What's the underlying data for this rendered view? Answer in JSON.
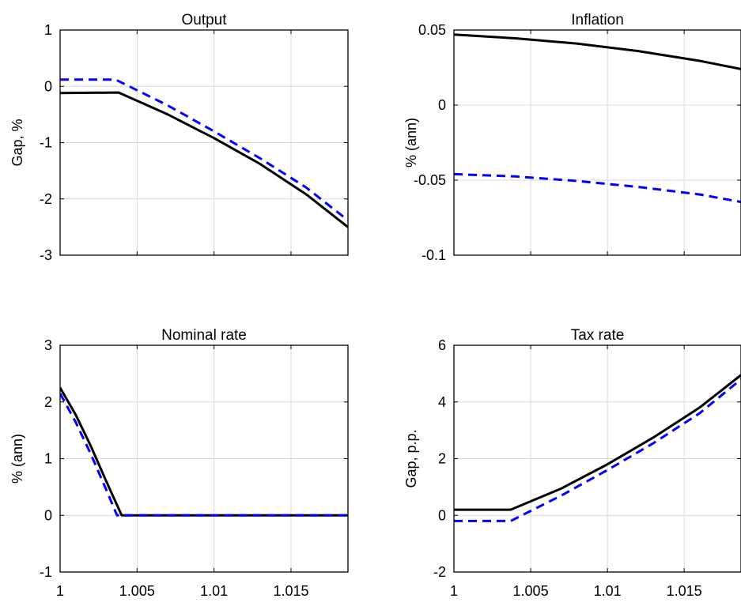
{
  "figure": {
    "style": {
      "solid_color": "#000000",
      "dashed_color": "#0000ff",
      "grid_color": "#d9d9d9",
      "axes_color": "#000000"
    }
  },
  "chart_data": [
    {
      "type": "line",
      "title": "Output",
      "xlabel": "",
      "ylabel": "Gap, %",
      "xlim": [
        1,
        1.0187
      ],
      "ylim": [
        -3,
        1
      ],
      "xticks": [
        1,
        1.005,
        1.01,
        1.015
      ],
      "xtick_labels": [
        "",
        "",
        "",
        ""
      ],
      "yticks": [
        -3,
        -2,
        -1,
        0,
        1
      ],
      "ytick_labels": [
        "-3",
        "-2",
        "-1",
        "0",
        "1"
      ],
      "grid": true,
      "series": [
        {
          "style": "solid",
          "x": [
            1,
            1.0038,
            1.007,
            1.01,
            1.013,
            1.016,
            1.0187
          ],
          "y": [
            -0.12,
            -0.11,
            -0.5,
            -0.92,
            -1.38,
            -1.92,
            -2.5
          ]
        },
        {
          "style": "dashed",
          "x": [
            1,
            1.0036,
            1.007,
            1.01,
            1.013,
            1.016,
            1.0187
          ],
          "y": [
            0.12,
            0.12,
            -0.34,
            -0.8,
            -1.28,
            -1.8,
            -2.38
          ]
        }
      ]
    },
    {
      "type": "line",
      "title": "Inflation",
      "xlabel": "",
      "ylabel": "% (ann)",
      "xlim": [
        1,
        1.0187
      ],
      "ylim": [
        -0.1,
        0.05
      ],
      "xticks": [
        1,
        1.005,
        1.01,
        1.015
      ],
      "xtick_labels": [
        "",
        "",
        "",
        ""
      ],
      "yticks": [
        -0.1,
        -0.05,
        0,
        0.05
      ],
      "ytick_labels": [
        "-0.1",
        "-0.05",
        "0",
        "0.05"
      ],
      "grid": true,
      "series": [
        {
          "style": "solid",
          "x": [
            1,
            1.004,
            1.008,
            1.012,
            1.016,
            1.0187
          ],
          "y": [
            0.047,
            0.0445,
            0.041,
            0.036,
            0.0295,
            0.024
          ]
        },
        {
          "style": "dashed",
          "x": [
            1,
            1.004,
            1.008,
            1.012,
            1.016,
            1.0187
          ],
          "y": [
            -0.046,
            -0.0475,
            -0.0505,
            -0.0545,
            -0.0595,
            -0.0645
          ]
        }
      ]
    },
    {
      "type": "line",
      "title": "Nominal rate",
      "xlabel": "",
      "ylabel": "% (ann)",
      "xlim": [
        1,
        1.0187
      ],
      "ylim": [
        -1,
        3
      ],
      "xticks": [
        1,
        1.005,
        1.01,
        1.015
      ],
      "xtick_labels": [
        "1",
        "1.005",
        "1.01",
        "1.015"
      ],
      "yticks": [
        -1,
        0,
        1,
        2,
        3
      ],
      "ytick_labels": [
        "-1",
        "0",
        "1",
        "2",
        "3"
      ],
      "grid": true,
      "series": [
        {
          "style": "solid",
          "x": [
            1,
            1.001,
            1.002,
            1.003,
            1.004,
            1.0187
          ],
          "y": [
            2.25,
            1.78,
            1.22,
            0.6,
            0,
            0
          ]
        },
        {
          "style": "dashed",
          "x": [
            1,
            1.001,
            1.002,
            1.003,
            1.0037,
            1.0187
          ],
          "y": [
            2.15,
            1.65,
            1.08,
            0.45,
            0,
            0
          ]
        }
      ]
    },
    {
      "type": "line",
      "title": "Tax rate",
      "xlabel": "",
      "ylabel": "Gap, p.p.",
      "xlim": [
        1,
        1.0187
      ],
      "ylim": [
        -2,
        6
      ],
      "xticks": [
        1,
        1.005,
        1.01,
        1.015
      ],
      "xtick_labels": [
        "1",
        "1.005",
        "1.01",
        "1.015"
      ],
      "yticks": [
        -2,
        0,
        2,
        4,
        6
      ],
      "ytick_labels": [
        "-2",
        "0",
        "2",
        "4",
        "6"
      ],
      "grid": true,
      "series": [
        {
          "style": "solid",
          "x": [
            1,
            1.0037,
            1.007,
            1.01,
            1.013,
            1.016,
            1.0187
          ],
          "y": [
            0.2,
            0.2,
            0.95,
            1.8,
            2.75,
            3.8,
            4.95
          ]
        },
        {
          "style": "dashed",
          "x": [
            1,
            1.0037,
            1.007,
            1.01,
            1.013,
            1.016,
            1.0187
          ],
          "y": [
            -0.2,
            -0.2,
            0.7,
            1.6,
            2.55,
            3.6,
            4.8
          ]
        }
      ]
    }
  ]
}
